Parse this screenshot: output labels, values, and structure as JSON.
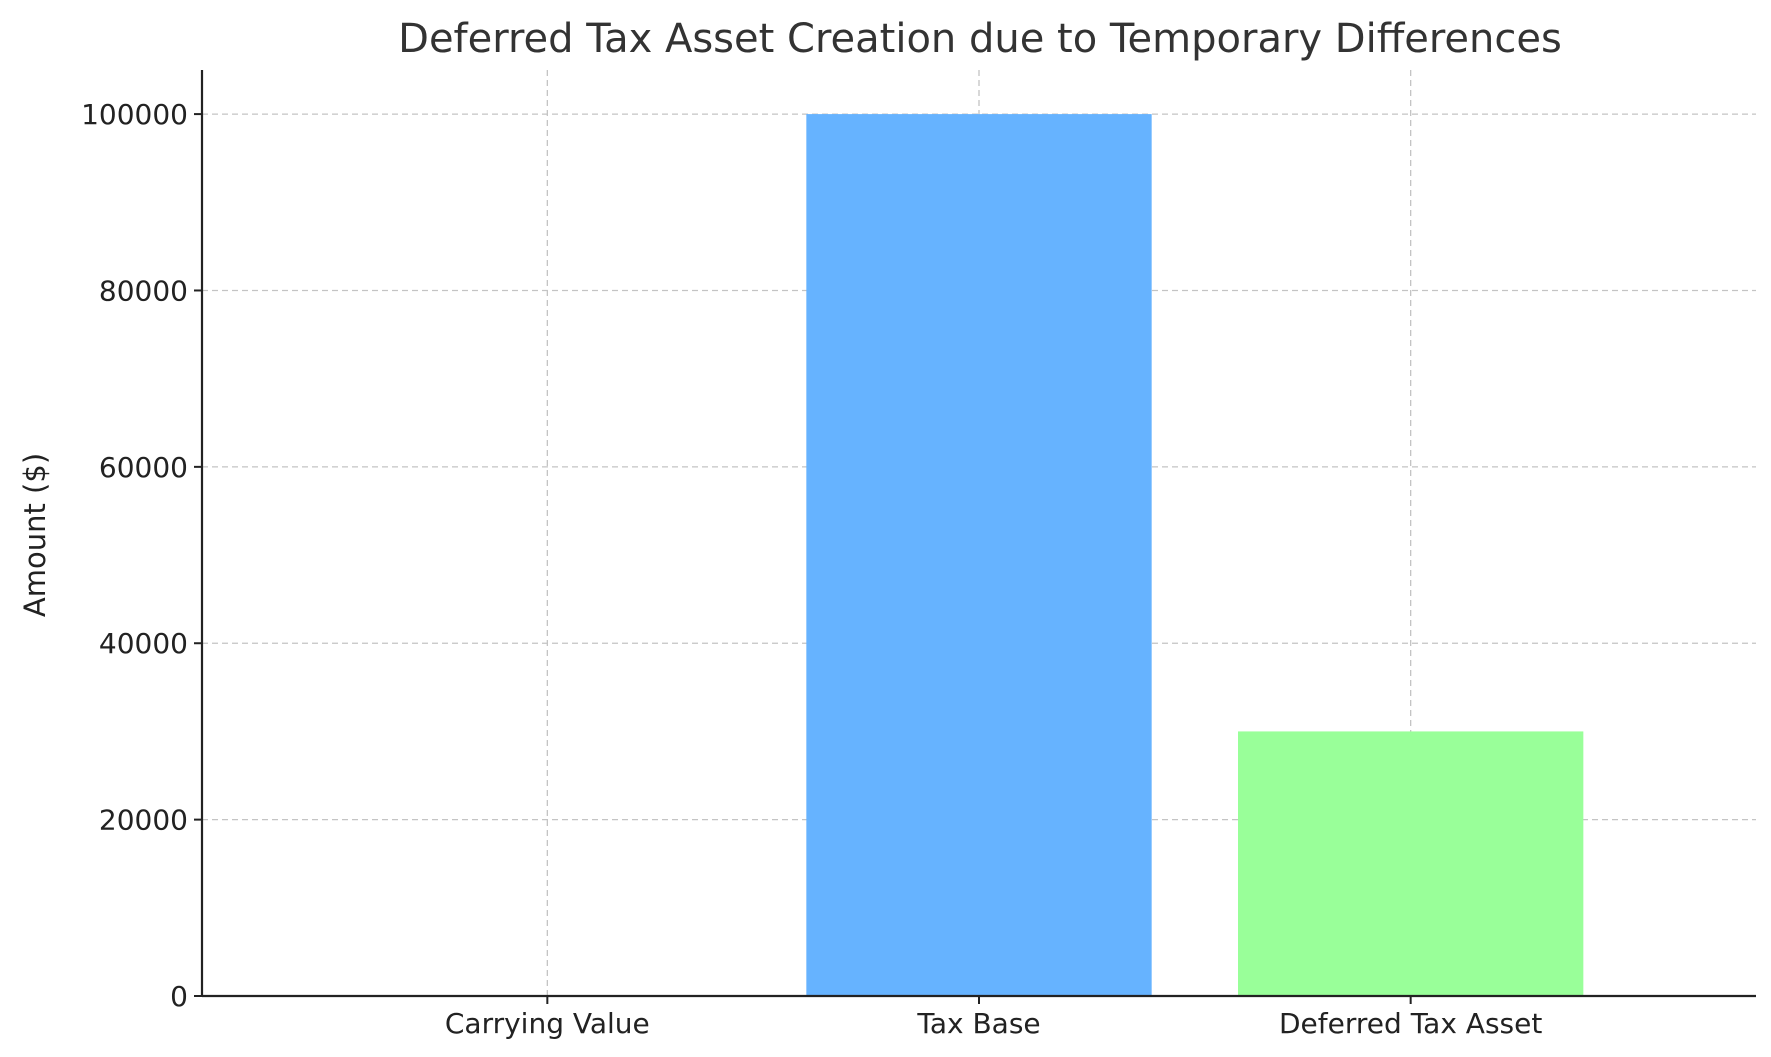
{
  "chart_data": {
    "type": "bar",
    "title": "Deferred Tax Asset Creation due to Temporary Differences",
    "xlabel": "",
    "ylabel": "Amount ($)",
    "categories": [
      "Carrying Value",
      "Tax Base",
      "Deferred Tax Asset"
    ],
    "values": [
      0,
      100000,
      30000
    ],
    "colors": [
      "#ff9999",
      "#66b3ff",
      "#99ff99"
    ],
    "ylim": [
      0,
      105000
    ],
    "yticks": [
      0,
      20000,
      40000,
      60000,
      80000,
      100000
    ],
    "grid": true,
    "legend": "none"
  }
}
